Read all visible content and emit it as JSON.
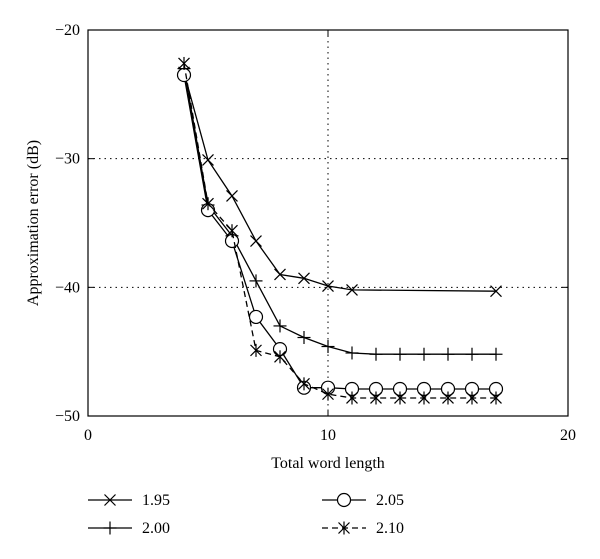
{
  "chart_data": {
    "type": "line",
    "title": "",
    "xlabel": "Total word length",
    "ylabel": "Approximation error (dB)",
    "xlim": [
      0,
      20
    ],
    "ylim": [
      -50,
      -20
    ],
    "xticks": [
      0,
      10,
      20
    ],
    "yticks": [
      -20,
      -30,
      -40,
      -50
    ],
    "grid": "dotted at x=10, y=-30, y=-40",
    "legend_position": "bottom",
    "series": [
      {
        "name": "1.95",
        "marker": "x",
        "dash": "solid",
        "x": [
          4,
          5,
          6,
          7,
          8,
          9,
          10,
          11,
          17
        ],
        "y": [
          -23.3,
          -30.1,
          -32.9,
          -36.4,
          -39.0,
          -39.3,
          -39.9,
          -40.2,
          -40.3
        ]
      },
      {
        "name": "2.00",
        "marker": "plus",
        "dash": "solid",
        "x": [
          4,
          5,
          6,
          7,
          8,
          9,
          10,
          11,
          12,
          13,
          14,
          15,
          16,
          17
        ],
        "y": [
          -23.0,
          -33.6,
          -36.0,
          -39.5,
          -43.0,
          -43.9,
          -44.6,
          -45.1,
          -45.2,
          -45.2,
          -45.2,
          -45.2,
          -45.2,
          -45.2
        ]
      },
      {
        "name": "2.05",
        "marker": "circle",
        "dash": "solid",
        "x": [
          4,
          5,
          6,
          7,
          8,
          9,
          10,
          11,
          12,
          13,
          14,
          15,
          16,
          17
        ],
        "y": [
          -23.5,
          -34.0,
          -36.4,
          -42.3,
          -44.8,
          -47.8,
          -47.8,
          -47.9,
          -47.9,
          -47.9,
          -47.9,
          -47.9,
          -47.9,
          -47.9
        ]
      },
      {
        "name": "2.10",
        "marker": "asterisk",
        "dash": "dashed",
        "x": [
          4,
          5,
          6,
          7,
          8,
          9,
          10,
          11,
          12,
          13,
          14,
          15,
          16,
          17
        ],
        "y": [
          -22.6,
          -33.5,
          -35.6,
          -44.9,
          -45.4,
          -47.5,
          -48.3,
          -48.6,
          -48.6,
          -48.6,
          -48.6,
          -48.6,
          -48.6,
          -48.6
        ]
      }
    ]
  }
}
